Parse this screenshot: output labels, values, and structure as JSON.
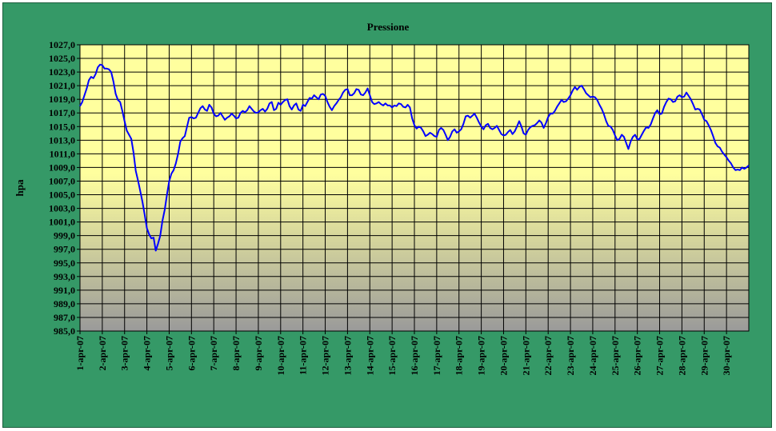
{
  "chart_data": {
    "type": "line",
    "title": "Pressione",
    "xlabel": "",
    "ylabel": "hpa",
    "ylim": [
      985.0,
      1027.0
    ],
    "y_step": 2.0,
    "grid": true,
    "legend": "none",
    "colors": {
      "frame": "#359967",
      "plot_top": "#ffff9e",
      "plot_bottom": "#9a9a9a",
      "line": "#0000ff",
      "grid": "#000000"
    },
    "categories": [
      "1-apr-07",
      "2-apr-07",
      "3-apr-07",
      "4-apr-07",
      "5-apr-07",
      "6-apr-07",
      "7-apr-07",
      "8-apr-07",
      "9-apr-07",
      "10-apr-07",
      "11-apr-07",
      "12-apr-07",
      "13-apr-07",
      "14-apr-07",
      "15-apr-07",
      "16-apr-07",
      "17-apr-07",
      "18-apr-07",
      "19-apr-07",
      "20-apr-07",
      "21-apr-07",
      "22-apr-07",
      "23-apr-07",
      "24-apr-07",
      "25-apr-07",
      "26-apr-07",
      "27-apr-07",
      "28-apr-07",
      "29-apr-07",
      "30-apr-07"
    ],
    "y_tick_labels": [
      "985,0",
      "987,0",
      "989,0",
      "991,0",
      "993,0",
      "995,0",
      "997,0",
      "999,0",
      "1001,0",
      "1003,0",
      "1005,0",
      "1007,0",
      "1009,0",
      "1011,0",
      "1013,0",
      "1015,0",
      "1017,0",
      "1019,0",
      "1021,0",
      "1023,0",
      "1025,0",
      "1027,0"
    ],
    "series": [
      {
        "values": [
          [
            0.0,
            1018.0
          ],
          [
            0.1,
            1018.6
          ],
          [
            0.2,
            1019.6
          ],
          [
            0.3,
            1020.6
          ],
          [
            0.4,
            1021.8
          ],
          [
            0.5,
            1022.3
          ],
          [
            0.6,
            1022.1
          ],
          [
            0.7,
            1022.7
          ],
          [
            0.8,
            1023.7
          ],
          [
            0.9,
            1024.1
          ],
          [
            1.0,
            1024.0
          ],
          [
            1.1,
            1023.5
          ],
          [
            1.2,
            1023.5
          ],
          [
            1.3,
            1023.4
          ],
          [
            1.4,
            1023.0
          ],
          [
            1.5,
            1021.6
          ],
          [
            1.6,
            1019.8
          ],
          [
            1.7,
            1018.9
          ],
          [
            1.8,
            1018.6
          ],
          [
            1.9,
            1017.3
          ],
          [
            2.0,
            1015.8
          ],
          [
            2.1,
            1014.4
          ],
          [
            2.2,
            1013.8
          ],
          [
            2.3,
            1013.2
          ],
          [
            2.4,
            1011.2
          ],
          [
            2.5,
            1008.5
          ],
          [
            2.6,
            1007.1
          ],
          [
            2.7,
            1005.6
          ],
          [
            2.8,
            1004.0
          ],
          [
            2.9,
            1002.1
          ],
          [
            3.0,
            1000.1
          ],
          [
            3.1,
            999.2
          ],
          [
            3.2,
            998.6
          ],
          [
            3.3,
            998.7
          ],
          [
            3.4,
            996.8
          ],
          [
            3.5,
            997.8
          ],
          [
            3.6,
            999.0
          ],
          [
            3.7,
            1001.2
          ],
          [
            3.8,
            1002.8
          ],
          [
            3.9,
            1005.0
          ],
          [
            4.0,
            1007.0
          ],
          [
            4.1,
            1008.1
          ],
          [
            4.2,
            1008.6
          ],
          [
            4.3,
            1009.6
          ],
          [
            4.4,
            1011.0
          ],
          [
            4.5,
            1012.8
          ],
          [
            4.6,
            1013.3
          ],
          [
            4.7,
            1013.6
          ],
          [
            4.8,
            1015.0
          ],
          [
            4.9,
            1016.3
          ],
          [
            5.0,
            1016.4
          ],
          [
            5.1,
            1016.2
          ],
          [
            5.2,
            1016.3
          ],
          [
            5.3,
            1017.0
          ],
          [
            5.4,
            1017.7
          ],
          [
            5.5,
            1018.0
          ],
          [
            5.6,
            1017.5
          ],
          [
            5.7,
            1017.3
          ],
          [
            5.8,
            1018.2
          ],
          [
            5.9,
            1017.8
          ],
          [
            6.0,
            1016.9
          ],
          [
            6.1,
            1016.5
          ],
          [
            6.2,
            1016.6
          ],
          [
            6.3,
            1017.0
          ],
          [
            6.4,
            1016.5
          ],
          [
            6.5,
            1016.0
          ],
          [
            6.6,
            1016.3
          ],
          [
            6.7,
            1016.5
          ],
          [
            6.8,
            1016.9
          ],
          [
            6.9,
            1016.6
          ],
          [
            7.0,
            1016.2
          ],
          [
            7.1,
            1016.3
          ],
          [
            7.2,
            1017.0
          ],
          [
            7.3,
            1017.3
          ],
          [
            7.4,
            1017.1
          ],
          [
            7.5,
            1017.4
          ],
          [
            7.6,
            1018.0
          ],
          [
            7.7,
            1017.6
          ],
          [
            7.8,
            1017.2
          ],
          [
            7.9,
            1017.0
          ],
          [
            8.0,
            1017.1
          ],
          [
            8.1,
            1017.4
          ],
          [
            8.2,
            1017.6
          ],
          [
            8.3,
            1017.2
          ],
          [
            8.4,
            1017.6
          ],
          [
            8.5,
            1018.4
          ],
          [
            8.6,
            1018.6
          ],
          [
            8.7,
            1017.4
          ],
          [
            8.8,
            1017.6
          ],
          [
            8.9,
            1018.5
          ],
          [
            9.0,
            1018.2
          ],
          [
            9.1,
            1018.6
          ],
          [
            9.2,
            1018.9
          ],
          [
            9.3,
            1019.0
          ],
          [
            9.4,
            1018.0
          ],
          [
            9.5,
            1017.5
          ],
          [
            9.6,
            1018.1
          ],
          [
            9.7,
            1018.4
          ],
          [
            9.8,
            1017.5
          ],
          [
            9.9,
            1017.3
          ],
          [
            10.0,
            1018.2
          ],
          [
            10.1,
            1018.0
          ],
          [
            10.2,
            1018.6
          ],
          [
            10.3,
            1019.2
          ],
          [
            10.4,
            1019.1
          ],
          [
            10.5,
            1019.6
          ],
          [
            10.6,
            1019.3
          ],
          [
            10.7,
            1019.0
          ],
          [
            10.8,
            1019.7
          ],
          [
            10.9,
            1019.8
          ],
          [
            11.0,
            1019.5
          ],
          [
            11.1,
            1018.6
          ],
          [
            11.2,
            1017.9
          ],
          [
            11.3,
            1017.4
          ],
          [
            11.4,
            1018.0
          ],
          [
            11.5,
            1018.4
          ],
          [
            11.6,
            1018.9
          ],
          [
            11.7,
            1019.3
          ],
          [
            11.8,
            1020.0
          ],
          [
            11.9,
            1020.4
          ],
          [
            12.0,
            1020.5
          ],
          [
            12.1,
            1019.6
          ],
          [
            12.2,
            1019.6
          ],
          [
            12.3,
            1019.9
          ],
          [
            12.4,
            1020.5
          ],
          [
            12.5,
            1020.4
          ],
          [
            12.6,
            1019.7
          ],
          [
            12.7,
            1019.6
          ],
          [
            12.8,
            1020.0
          ],
          [
            12.9,
            1020.6
          ],
          [
            13.0,
            1019.6
          ],
          [
            13.1,
            1018.6
          ],
          [
            13.2,
            1018.3
          ],
          [
            13.3,
            1018.4
          ],
          [
            13.4,
            1018.6
          ],
          [
            13.5,
            1018.3
          ],
          [
            13.6,
            1018.1
          ],
          [
            13.7,
            1018.4
          ],
          [
            13.8,
            1018.1
          ],
          [
            13.9,
            1018.1
          ],
          [
            14.0,
            1017.8
          ],
          [
            14.1,
            1018.1
          ],
          [
            14.2,
            1018.0
          ],
          [
            14.3,
            1018.4
          ],
          [
            14.4,
            1018.3
          ],
          [
            14.5,
            1017.9
          ],
          [
            14.6,
            1017.8
          ],
          [
            14.7,
            1018.2
          ],
          [
            14.8,
            1017.8
          ],
          [
            14.9,
            1016.2
          ],
          [
            15.0,
            1015.2
          ],
          [
            15.1,
            1014.7
          ],
          [
            15.2,
            1015.0
          ],
          [
            15.3,
            1014.8
          ],
          [
            15.4,
            1014.3
          ],
          [
            15.5,
            1013.6
          ],
          [
            15.6,
            1013.8
          ],
          [
            15.7,
            1014.1
          ],
          [
            15.8,
            1013.9
          ],
          [
            15.9,
            1013.6
          ],
          [
            16.0,
            1013.5
          ],
          [
            16.1,
            1014.5
          ],
          [
            16.2,
            1014.8
          ],
          [
            16.3,
            1014.5
          ],
          [
            16.4,
            1013.8
          ],
          [
            16.5,
            1013.0
          ],
          [
            16.6,
            1013.5
          ],
          [
            16.7,
            1014.3
          ],
          [
            16.8,
            1014.6
          ],
          [
            16.9,
            1014.1
          ],
          [
            17.0,
            1014.3
          ],
          [
            17.1,
            1014.6
          ],
          [
            17.2,
            1015.4
          ],
          [
            17.3,
            1016.5
          ],
          [
            17.4,
            1016.6
          ],
          [
            17.5,
            1016.3
          ],
          [
            17.6,
            1016.6
          ],
          [
            17.7,
            1016.9
          ],
          [
            17.8,
            1016.3
          ],
          [
            17.9,
            1015.6
          ],
          [
            18.0,
            1015.0
          ],
          [
            18.1,
            1014.6
          ],
          [
            18.2,
            1015.2
          ],
          [
            18.3,
            1015.4
          ],
          [
            18.4,
            1014.8
          ],
          [
            18.5,
            1014.6
          ],
          [
            18.6,
            1014.8
          ],
          [
            18.7,
            1015.1
          ],
          [
            18.8,
            1014.5
          ],
          [
            18.9,
            1013.9
          ],
          [
            19.0,
            1013.7
          ],
          [
            19.1,
            1013.8
          ],
          [
            19.2,
            1014.2
          ],
          [
            19.3,
            1014.5
          ],
          [
            19.4,
            1013.9
          ],
          [
            19.5,
            1014.3
          ],
          [
            19.6,
            1015.0
          ],
          [
            19.7,
            1015.8
          ],
          [
            19.8,
            1015.0
          ],
          [
            19.9,
            1014.0
          ],
          [
            20.0,
            1013.8
          ],
          [
            20.1,
            1014.5
          ],
          [
            20.2,
            1014.9
          ],
          [
            20.3,
            1015.1
          ],
          [
            20.4,
            1015.2
          ],
          [
            20.5,
            1015.5
          ],
          [
            20.6,
            1015.9
          ],
          [
            20.7,
            1015.6
          ],
          [
            20.8,
            1014.8
          ],
          [
            20.9,
            1015.5
          ],
          [
            21.0,
            1016.4
          ],
          [
            21.1,
            1016.9
          ],
          [
            21.2,
            1016.9
          ],
          [
            21.3,
            1017.3
          ],
          [
            21.4,
            1017.9
          ],
          [
            21.5,
            1018.4
          ],
          [
            21.6,
            1018.9
          ],
          [
            21.7,
            1018.6
          ],
          [
            21.8,
            1018.7
          ],
          [
            21.9,
            1019.1
          ],
          [
            22.0,
            1019.6
          ],
          [
            22.1,
            1020.3
          ],
          [
            22.2,
            1020.8
          ],
          [
            22.3,
            1020.4
          ],
          [
            22.4,
            1020.8
          ],
          [
            22.5,
            1021.0
          ],
          [
            22.6,
            1020.5
          ],
          [
            22.7,
            1019.9
          ],
          [
            22.8,
            1019.6
          ],
          [
            22.9,
            1019.3
          ],
          [
            23.0,
            1019.4
          ],
          [
            23.1,
            1019.3
          ],
          [
            23.2,
            1018.9
          ],
          [
            23.3,
            1018.2
          ],
          [
            23.4,
            1017.6
          ],
          [
            23.5,
            1016.8
          ],
          [
            23.6,
            1015.8
          ],
          [
            23.7,
            1015.1
          ],
          [
            23.8,
            1015.0
          ],
          [
            23.9,
            1014.5
          ],
          [
            24.0,
            1013.7
          ],
          [
            24.1,
            1013.0
          ],
          [
            24.2,
            1013.2
          ],
          [
            24.3,
            1013.8
          ],
          [
            24.4,
            1013.5
          ],
          [
            24.5,
            1012.6
          ],
          [
            24.6,
            1011.7
          ],
          [
            24.7,
            1012.8
          ],
          [
            24.8,
            1013.5
          ],
          [
            24.9,
            1013.8
          ],
          [
            25.0,
            1013.1
          ],
          [
            25.1,
            1013.2
          ],
          [
            25.2,
            1013.8
          ],
          [
            25.3,
            1014.4
          ],
          [
            25.4,
            1014.9
          ],
          [
            25.5,
            1014.8
          ],
          [
            25.6,
            1015.3
          ],
          [
            25.7,
            1016.2
          ],
          [
            25.8,
            1017.0
          ],
          [
            25.9,
            1017.4
          ],
          [
            26.0,
            1016.8
          ],
          [
            26.1,
            1016.9
          ],
          [
            26.2,
            1017.9
          ],
          [
            26.3,
            1018.6
          ],
          [
            26.4,
            1019.1
          ],
          [
            26.5,
            1019.0
          ],
          [
            26.6,
            1018.6
          ],
          [
            26.7,
            1018.7
          ],
          [
            26.8,
            1019.4
          ],
          [
            26.9,
            1019.6
          ],
          [
            27.0,
            1019.3
          ],
          [
            27.1,
            1019.4
          ],
          [
            27.2,
            1020.0
          ],
          [
            27.3,
            1019.5
          ],
          [
            27.4,
            1019.0
          ],
          [
            27.5,
            1018.3
          ],
          [
            27.6,
            1017.5
          ],
          [
            27.7,
            1017.6
          ],
          [
            27.8,
            1017.5
          ],
          [
            27.9,
            1016.8
          ],
          [
            28.0,
            1016.0
          ],
          [
            28.1,
            1015.8
          ],
          [
            28.2,
            1015.2
          ],
          [
            28.3,
            1014.5
          ],
          [
            28.4,
            1013.6
          ],
          [
            28.5,
            1012.6
          ],
          [
            28.6,
            1012.1
          ],
          [
            28.7,
            1011.9
          ],
          [
            28.8,
            1011.3
          ],
          [
            28.9,
            1010.9
          ],
          [
            29.0,
            1010.5
          ],
          [
            29.1,
            1010.0
          ],
          [
            29.2,
            1009.6
          ],
          [
            29.3,
            1009.0
          ],
          [
            29.4,
            1008.6
          ],
          [
            29.5,
            1008.7
          ],
          [
            29.6,
            1008.6
          ],
          [
            29.7,
            1009.0
          ],
          [
            29.8,
            1008.8
          ],
          [
            29.9,
            1009.0
          ],
          [
            30.0,
            1009.3
          ]
        ]
      }
    ]
  }
}
